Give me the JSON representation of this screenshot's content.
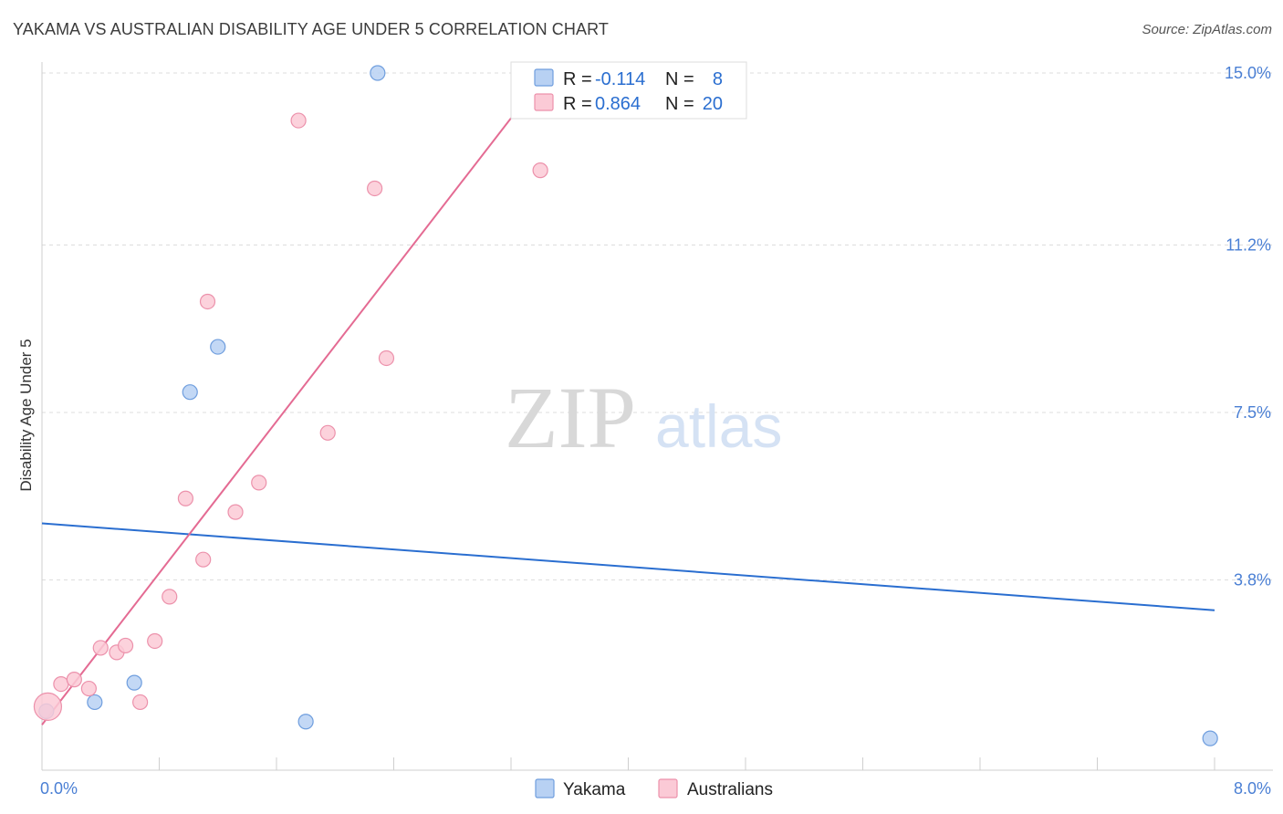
{
  "header": {
    "title": "YAKAMA VS AUSTRALIAN DISABILITY AGE UNDER 5 CORRELATION CHART",
    "source": "Source: ZipAtlas.com"
  },
  "watermark": {
    "zip": "ZIP",
    "atlas": "atlas"
  },
  "colors": {
    "yakama_fill": "#b8d1f3",
    "yakama_stroke": "#6f9ede",
    "yakama_line": "#2a6ed0",
    "australians_fill": "#fbcad6",
    "australians_stroke": "#ec91ab",
    "australians_line": "#e46b93",
    "grid": "#dddddd",
    "tick_label": "#4a7fd4"
  },
  "legend": {
    "r_label": "R =",
    "n_label": "N =",
    "rows": [
      {
        "series": "Yakama",
        "r": "-0.114",
        "n": "8"
      },
      {
        "series": "Australians",
        "r": "0.864",
        "n": "20"
      }
    ]
  },
  "bottom_legend": [
    "Yakama",
    "Australians"
  ],
  "chart_data": {
    "type": "scatter",
    "title": "YAKAMA VS AUSTRALIAN DISABILITY AGE UNDER 5 CORRELATION CHART",
    "xlabel": "",
    "ylabel": "Disability Age Under 5",
    "xlim": [
      0,
      8
    ],
    "ylim": [
      0,
      15
    ],
    "x_tick_labels": [
      {
        "value": 0,
        "label": "0.0%"
      },
      {
        "value": 8,
        "label": "8.0%"
      }
    ],
    "y_tick_labels": [
      {
        "value": 3.8,
        "label": "3.8%"
      },
      {
        "value": 7.5,
        "label": "7.5%"
      },
      {
        "value": 11.2,
        "label": "11.2%"
      },
      {
        "value": 15.0,
        "label": "15.0%"
      }
    ],
    "grid": true,
    "series": [
      {
        "name": "Yakama",
        "points": [
          {
            "x": 0.03,
            "y": 0.9
          },
          {
            "x": 0.36,
            "y": 1.1
          },
          {
            "x": 0.63,
            "y": 1.53
          },
          {
            "x": 1.01,
            "y": 7.95
          },
          {
            "x": 1.2,
            "y": 8.95
          },
          {
            "x": 1.8,
            "y": 0.67
          },
          {
            "x": 2.29,
            "y": 15.0
          },
          {
            "x": 7.97,
            "y": 0.3
          }
        ],
        "trend": {
          "x0": 0,
          "y0": 5.05,
          "x1": 8.0,
          "y1": 3.13
        }
      },
      {
        "name": "Australians",
        "points": [
          {
            "x": 0.04,
            "y": 1.0,
            "size": "large"
          },
          {
            "x": 0.13,
            "y": 1.5
          },
          {
            "x": 0.22,
            "y": 1.6
          },
          {
            "x": 0.32,
            "y": 1.4
          },
          {
            "x": 0.4,
            "y": 2.3
          },
          {
            "x": 0.51,
            "y": 2.2
          },
          {
            "x": 0.57,
            "y": 2.35
          },
          {
            "x": 0.67,
            "y": 1.1
          },
          {
            "x": 0.77,
            "y": 2.45
          },
          {
            "x": 0.87,
            "y": 3.43
          },
          {
            "x": 0.98,
            "y": 5.6
          },
          {
            "x": 1.1,
            "y": 4.25
          },
          {
            "x": 1.13,
            "y": 9.95
          },
          {
            "x": 1.32,
            "y": 5.3
          },
          {
            "x": 1.48,
            "y": 5.95
          },
          {
            "x": 1.75,
            "y": 13.95
          },
          {
            "x": 1.95,
            "y": 7.05
          },
          {
            "x": 2.27,
            "y": 12.45
          },
          {
            "x": 2.35,
            "y": 8.7
          },
          {
            "x": 3.4,
            "y": 12.85
          }
        ],
        "trend": {
          "x0": 0,
          "y0": 0.6,
          "x1": 3.45,
          "y1": 15.05
        }
      }
    ]
  }
}
